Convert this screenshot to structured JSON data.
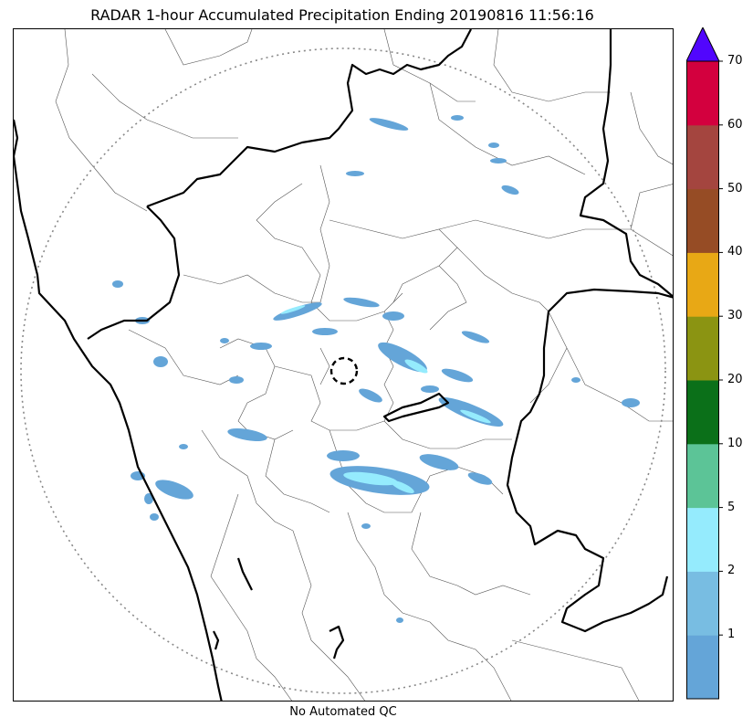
{
  "title": "RADAR 1-hour Accumulated Precipitation Ending 20190816 11:56:16",
  "footer": "No Automated QC",
  "colorbar": {
    "levels": [
      {
        "label": "",
        "color": "#64a5d8"
      },
      {
        "label": "1",
        "color": "#78bde2"
      },
      {
        "label": "2",
        "color": "#95ebfd"
      },
      {
        "label": "5",
        "color": "#5cc497"
      },
      {
        "label": "10",
        "color": "#0b7019"
      },
      {
        "label": "20",
        "color": "#8b9412"
      },
      {
        "label": "30",
        "color": "#e8a815"
      },
      {
        "label": "40",
        "color": "#964c25"
      },
      {
        "label": "50",
        "color": "#a4453f"
      },
      {
        "label": "60",
        "color": "#d3003e"
      },
      {
        "label": "70",
        "color": ""
      }
    ],
    "extend_color": "#5106fd"
  },
  "map": {
    "range_ring_color": "#888888",
    "state_border_color": "#000000",
    "district_border_color": "#555555"
  }
}
